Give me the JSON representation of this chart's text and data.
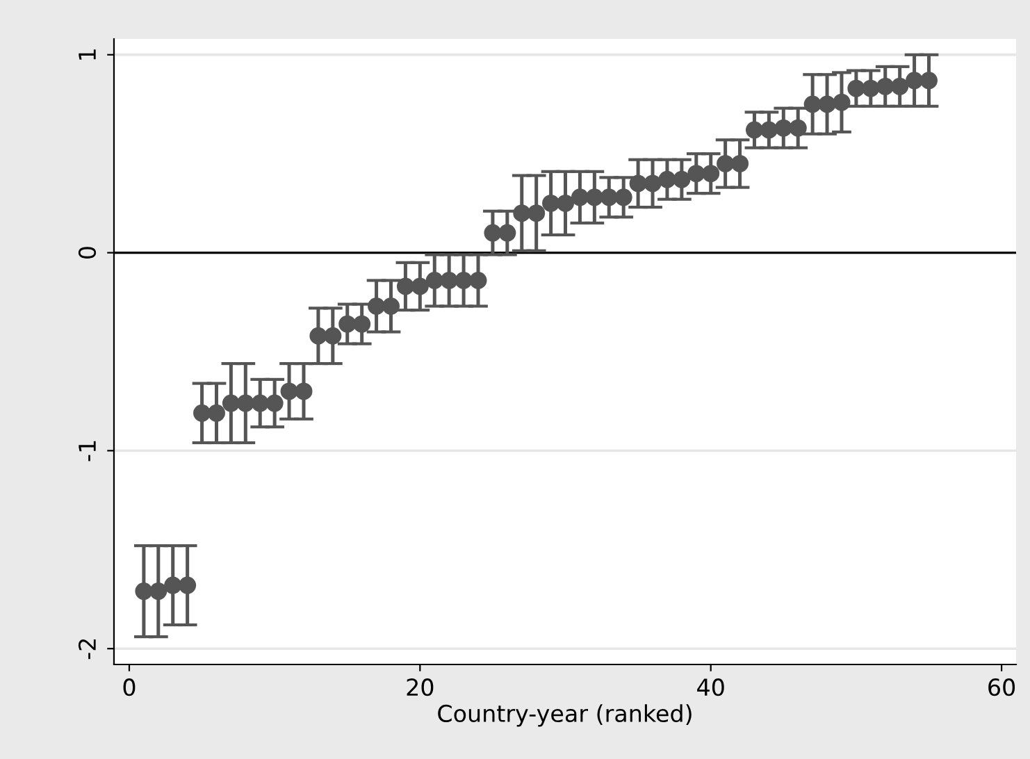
{
  "chart_data": {
    "type": "scatter",
    "xlabel": "Country-year (ranked)",
    "x": [
      1,
      2,
      3,
      4,
      5,
      6,
      7,
      8,
      9,
      10,
      11,
      12,
      13,
      14,
      15,
      16,
      17,
      18,
      19,
      20,
      21,
      22,
      23,
      24,
      25,
      26,
      27,
      28,
      29,
      30,
      31,
      32,
      33,
      34,
      35,
      36,
      37,
      38,
      39,
      40,
      41,
      42,
      43,
      44,
      45,
      46,
      47,
      48,
      49,
      50,
      51,
      52,
      53,
      54,
      55
    ],
    "values": [
      -1.71,
      -1.71,
      -1.68,
      -1.68,
      -0.81,
      -0.81,
      -0.76,
      -0.76,
      -0.76,
      -0.76,
      -0.7,
      -0.7,
      -0.42,
      -0.42,
      -0.36,
      -0.36,
      -0.27,
      -0.27,
      -0.17,
      -0.17,
      -0.14,
      -0.14,
      -0.14,
      -0.14,
      0.1,
      0.1,
      0.2,
      0.2,
      0.25,
      0.25,
      0.28,
      0.28,
      0.28,
      0.28,
      0.35,
      0.35,
      0.37,
      0.37,
      0.4,
      0.4,
      0.45,
      0.45,
      0.62,
      0.62,
      0.63,
      0.63,
      0.75,
      0.75,
      0.76,
      0.83,
      0.83,
      0.84,
      0.84,
      0.87,
      0.87
    ],
    "errors": [
      0.23,
      0.23,
      0.2,
      0.2,
      0.15,
      0.15,
      0.2,
      0.2,
      0.12,
      0.12,
      0.14,
      0.14,
      0.14,
      0.14,
      0.1,
      0.1,
      0.13,
      0.13,
      0.12,
      0.12,
      0.13,
      0.13,
      0.13,
      0.13,
      0.11,
      0.11,
      0.19,
      0.19,
      0.16,
      0.16,
      0.13,
      0.13,
      0.1,
      0.1,
      0.12,
      0.12,
      0.1,
      0.1,
      0.1,
      0.1,
      0.12,
      0.12,
      0.09,
      0.09,
      0.1,
      0.1,
      0.15,
      0.15,
      0.15,
      0.09,
      0.09,
      0.1,
      0.1,
      0.13,
      0.13
    ],
    "color": "#555555",
    "marker": "circle",
    "xlim": [
      -1.05,
      61
    ],
    "xticks": [
      0,
      20,
      40,
      60
    ],
    "ylim": [
      -2.08,
      1.08
    ],
    "yticks": [
      -2,
      -1,
      0,
      1
    ],
    "grid": "y",
    "ref_lines": [
      {
        "axis": "y",
        "value": 0,
        "color": "#000000"
      }
    ]
  }
}
